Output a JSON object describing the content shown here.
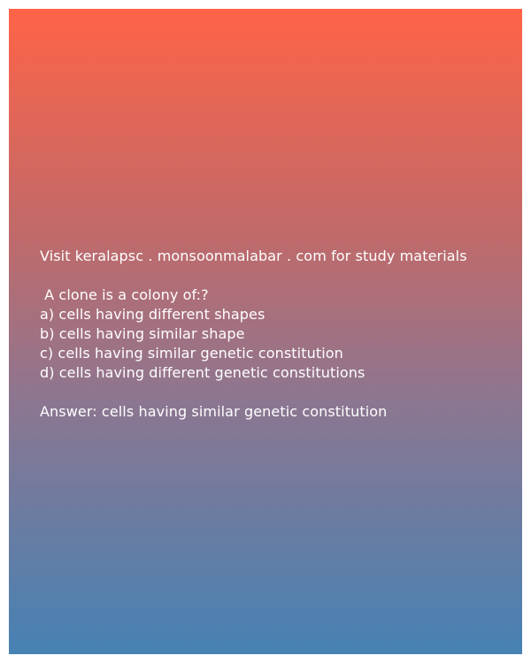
{
  "promo": "Visit keralapsc . monsoonmalabar . com for study materials",
  "question": " A clone is a colony of:?",
  "options": [
    "a) cells having different shapes",
    "b) cells having similar shape",
    "c) cells having similar genetic constitution",
    "d) cells having different genetic constitutions"
  ],
  "answer": "Answer: cells having similar genetic constitution",
  "colors": {
    "gradient_top": "#ff6347",
    "gradient_bottom": "#4682b4",
    "text": "#ffffff"
  }
}
